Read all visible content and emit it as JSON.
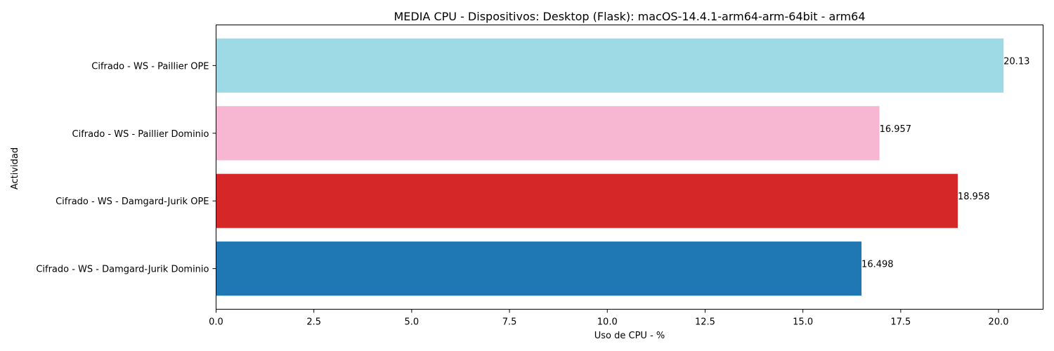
{
  "chart_data": {
    "type": "bar",
    "orientation": "horizontal",
    "title": "MEDIA CPU - Dispositivos: Desktop (Flask): macOS-14.4.1-arm64-arm-64bit - arm64",
    "xlabel": "Uso de CPU - %",
    "ylabel": "Actividad",
    "categories": [
      "Cifrado - WS - Damgard-Jurik Dominio",
      "Cifrado - WS - Damgard-Jurik OPE",
      "Cifrado - WS - Paillier Dominio",
      "Cifrado - WS - Paillier OPE"
    ],
    "values": [
      16.498,
      18.958,
      16.957,
      20.13
    ],
    "data_labels": [
      "16.498",
      "18.958",
      "16.957",
      "20.13"
    ],
    "colors": [
      "#1f77b4",
      "#d62728",
      "#f7b6d2",
      "#9edae5"
    ],
    "xlim": [
      0,
      21.14
    ],
    "xticks": [
      0,
      2.5,
      5,
      7.5,
      10,
      12.5,
      15,
      17.5,
      20
    ],
    "xtick_labels": [
      "0.0",
      "2.5",
      "5.0",
      "7.5",
      "10.0",
      "12.5",
      "15.0",
      "17.5",
      "20.0"
    ],
    "grid": false,
    "legend": "none"
  }
}
